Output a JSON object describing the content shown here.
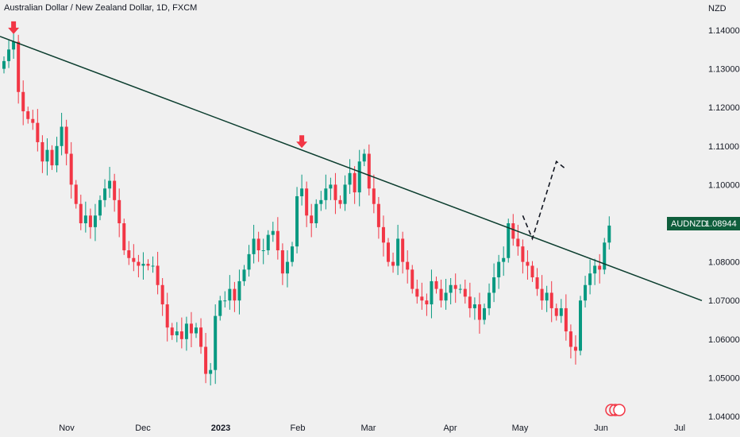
{
  "header": {
    "title": "Australian Dollar / New Zealand Dollar, 1D, FXCM"
  },
  "price_axis": {
    "currency": "NZD"
  },
  "colors": {
    "background": "#f0f0f0",
    "up": "#089981",
    "down": "#f23645",
    "trendline": "#0b3d2e",
    "tag": "#0f5e3c"
  },
  "chart_data": {
    "type": "candlestick",
    "symbol_tag": "AUDNZD",
    "last_price": "1.08944",
    "ylim": [
      1.038,
      1.144
    ],
    "y_ticks": [
      "1.14000",
      "1.13000",
      "1.12000",
      "1.11000",
      "1.10000",
      "1.09000",
      "1.08000",
      "1.07000",
      "1.06000",
      "1.05000",
      "1.04000"
    ],
    "x_ticks": [
      {
        "label": "Nov",
        "bold": false
      },
      {
        "label": "Dec",
        "bold": false
      },
      {
        "label": "2023",
        "bold": true
      },
      {
        "label": "Feb",
        "bold": false
      },
      {
        "label": "Mar",
        "bold": false
      },
      {
        "label": "Apr",
        "bold": false
      },
      {
        "label": "May",
        "bold": false
      },
      {
        "label": "Jun",
        "bold": false
      },
      {
        "label": "Jul",
        "bold": false
      }
    ],
    "close_series": [
      1.132,
      1.135,
      1.137,
      1.124,
      1.119,
      1.117,
      1.116,
      1.111,
      1.106,
      1.109,
      1.105,
      1.11,
      1.115,
      1.108,
      1.1,
      1.095,
      1.09,
      1.092,
      1.089,
      1.092,
      1.096,
      1.099,
      1.101,
      1.096,
      1.09,
      1.083,
      1.081,
      1.08,
      1.079,
      1.0795,
      1.079,
      1.079,
      1.074,
      1.069,
      1.063,
      1.061,
      1.062,
      1.06,
      1.064,
      1.0615,
      1.063,
      1.058,
      1.051,
      1.052,
      1.066,
      1.07,
      1.07,
      1.073,
      1.07,
      1.075,
      1.078,
      1.082,
      1.086,
      1.083,
      1.083,
      1.087,
      1.088,
      1.083,
      1.077,
      1.08,
      1.084,
      1.097,
      1.099,
      1.092,
      1.09,
      1.095,
      1.096,
      1.099,
      1.1,
      1.096,
      1.095,
      1.1,
      1.103,
      1.098,
      1.106,
      1.108,
      1.099,
      1.095,
      1.089,
      1.085,
      1.08,
      1.079,
      1.086,
      1.08,
      1.078,
      1.073,
      1.071,
      1.07,
      1.069,
      1.075,
      1.073,
      1.07,
      1.072,
      1.074,
      1.073,
      1.073,
      1.071,
      1.068,
      1.069,
      1.065,
      1.068,
      1.072,
      1.076,
      1.08,
      1.081,
      1.09,
      1.086,
      1.084,
      1.08,
      1.079,
      1.076,
      1.073,
      1.07,
      1.072,
      1.068,
      1.066,
      1.068,
      1.062,
      1.058,
      1.057,
      1.07,
      1.074,
      1.077,
      1.079,
      1.078,
      1.085,
      1.0894
    ],
    "trendline": {
      "from_index": 0,
      "from_price": 1.138,
      "to_index": 126,
      "to_price": 1.079
    },
    "markers": [
      {
        "type": "arrow-down",
        "index": 2,
        "price": 1.139,
        "color": "#f23645"
      },
      {
        "type": "arrow-down",
        "index": 62,
        "price": 1.1095,
        "color": "#f23645"
      }
    ],
    "projection": [
      {
        "index": 108,
        "price": 1.092
      },
      {
        "index": 110,
        "price": 1.086
      },
      {
        "index": 115,
        "price": 1.106
      },
      {
        "index": 117,
        "price": 1.104
      }
    ]
  }
}
